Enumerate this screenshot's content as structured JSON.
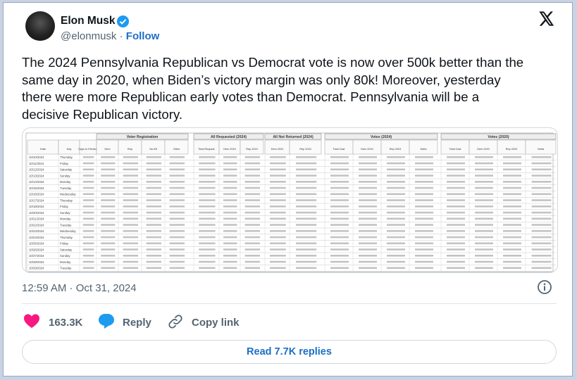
{
  "author": {
    "name": "Elon Musk",
    "handle": "@elonmusk",
    "separator": "·",
    "follow": "Follow"
  },
  "tweet": {
    "lines": [
      "The 2024 Pennsylvania Republican vs Democrat vote is now over 500k better than the",
      "same day in 2020, when Biden’s victory margin was only 80k! Moreover, yesterday",
      "there were more Republican early votes than Democrat. Pennsylvania will be a",
      "decisive Republican victory."
    ]
  },
  "image": {
    "groups": [
      "Voter Registration",
      "All Requested (2024)",
      "All Not Returned (2024)",
      "Votes (2024)",
      "Votes (2020)"
    ],
    "columns": [
      "Date",
      "Day",
      "Days to Election",
      "Dem",
      "Rep",
      "No Aff",
      "Other",
      "Total Request",
      "Dem 2024",
      "Rep 2024",
      "Dem 2024",
      "Rep 2024",
      "Total Cast",
      "Dem 2024",
      "Rep 2024",
      "Delta",
      "Total Cast",
      "Dem 2020",
      "Rep 2020",
      "Delta"
    ],
    "rows": [
      [
        "10/10/2024",
        "Thursday"
      ],
      [
        "10/11/2024",
        "Friday"
      ],
      [
        "10/12/2024",
        "Saturday"
      ],
      [
        "10/13/2024",
        "Sunday"
      ],
      [
        "10/14/2024",
        "Monday"
      ],
      [
        "10/15/2024",
        "Tuesday"
      ],
      [
        "10/16/2024",
        "Wednesday"
      ],
      [
        "10/17/2024",
        "Thursday"
      ],
      [
        "10/18/2024",
        "Friday"
      ],
      [
        "10/20/2024",
        "Sunday"
      ],
      [
        "10/21/2024",
        "Monday"
      ],
      [
        "10/22/2024",
        "Tuesday"
      ],
      [
        "10/23/2024",
        "Wednesday"
      ],
      [
        "10/24/2024",
        "Thursday"
      ],
      [
        "10/25/2024",
        "Friday"
      ],
      [
        "10/26/2024",
        "Saturday"
      ],
      [
        "10/27/2024",
        "Sunday"
      ],
      [
        "10/28/2024",
        "Monday"
      ],
      [
        "10/29/2024",
        "Tuesday"
      ]
    ]
  },
  "timestamp": "12:59 AM · Oct 31, 2024",
  "actions": {
    "likes": "163.3K",
    "reply": "Reply",
    "copy_link": "Copy link"
  },
  "read_replies": "Read 7.7K replies"
}
